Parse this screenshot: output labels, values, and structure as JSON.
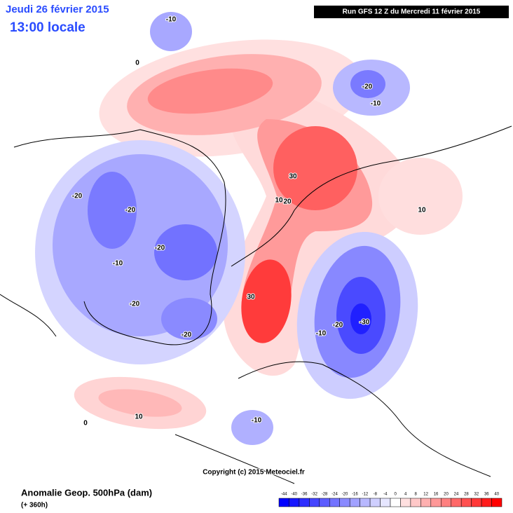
{
  "header": {
    "date": "Jeudi 26 février 2015",
    "time": "13:00 locale",
    "run": "Run GFS 12 Z du Mercredi 11 février 2015"
  },
  "copyright": "Copyright (c) 2015 Meteociel.fr",
  "footer": {
    "title": "Anomalie Geop. 500hPa (dam)",
    "subtitle": "(+ 360h)"
  },
  "contour_labels": [
    -10,
    0,
    -20,
    -10,
    -20,
    -20,
    -20,
    -10,
    -20,
    -20,
    30,
    10,
    20,
    10,
    30,
    -20,
    -30,
    -10,
    10,
    0,
    -10
  ],
  "legend": {
    "ticks": [
      -44,
      -40,
      -36,
      -32,
      -28,
      -24,
      -20,
      -16,
      -12,
      -8,
      -4,
      0,
      4,
      8,
      12,
      16,
      20,
      24,
      28,
      32,
      36,
      40
    ],
    "colors": [
      "#0000ff",
      "#1717ff",
      "#2e2eff",
      "#4545ff",
      "#5c5cff",
      "#7373ff",
      "#8a8aff",
      "#a1a1ff",
      "#b8b8ff",
      "#cfcfff",
      "#e6e6ff",
      "#ffffff",
      "#ffe0e0",
      "#ffc8c8",
      "#ffb0b0",
      "#ff9898",
      "#ff8080",
      "#ff6868",
      "#ff5050",
      "#ff3838",
      "#ff1c1c",
      "#ff0000"
    ]
  }
}
